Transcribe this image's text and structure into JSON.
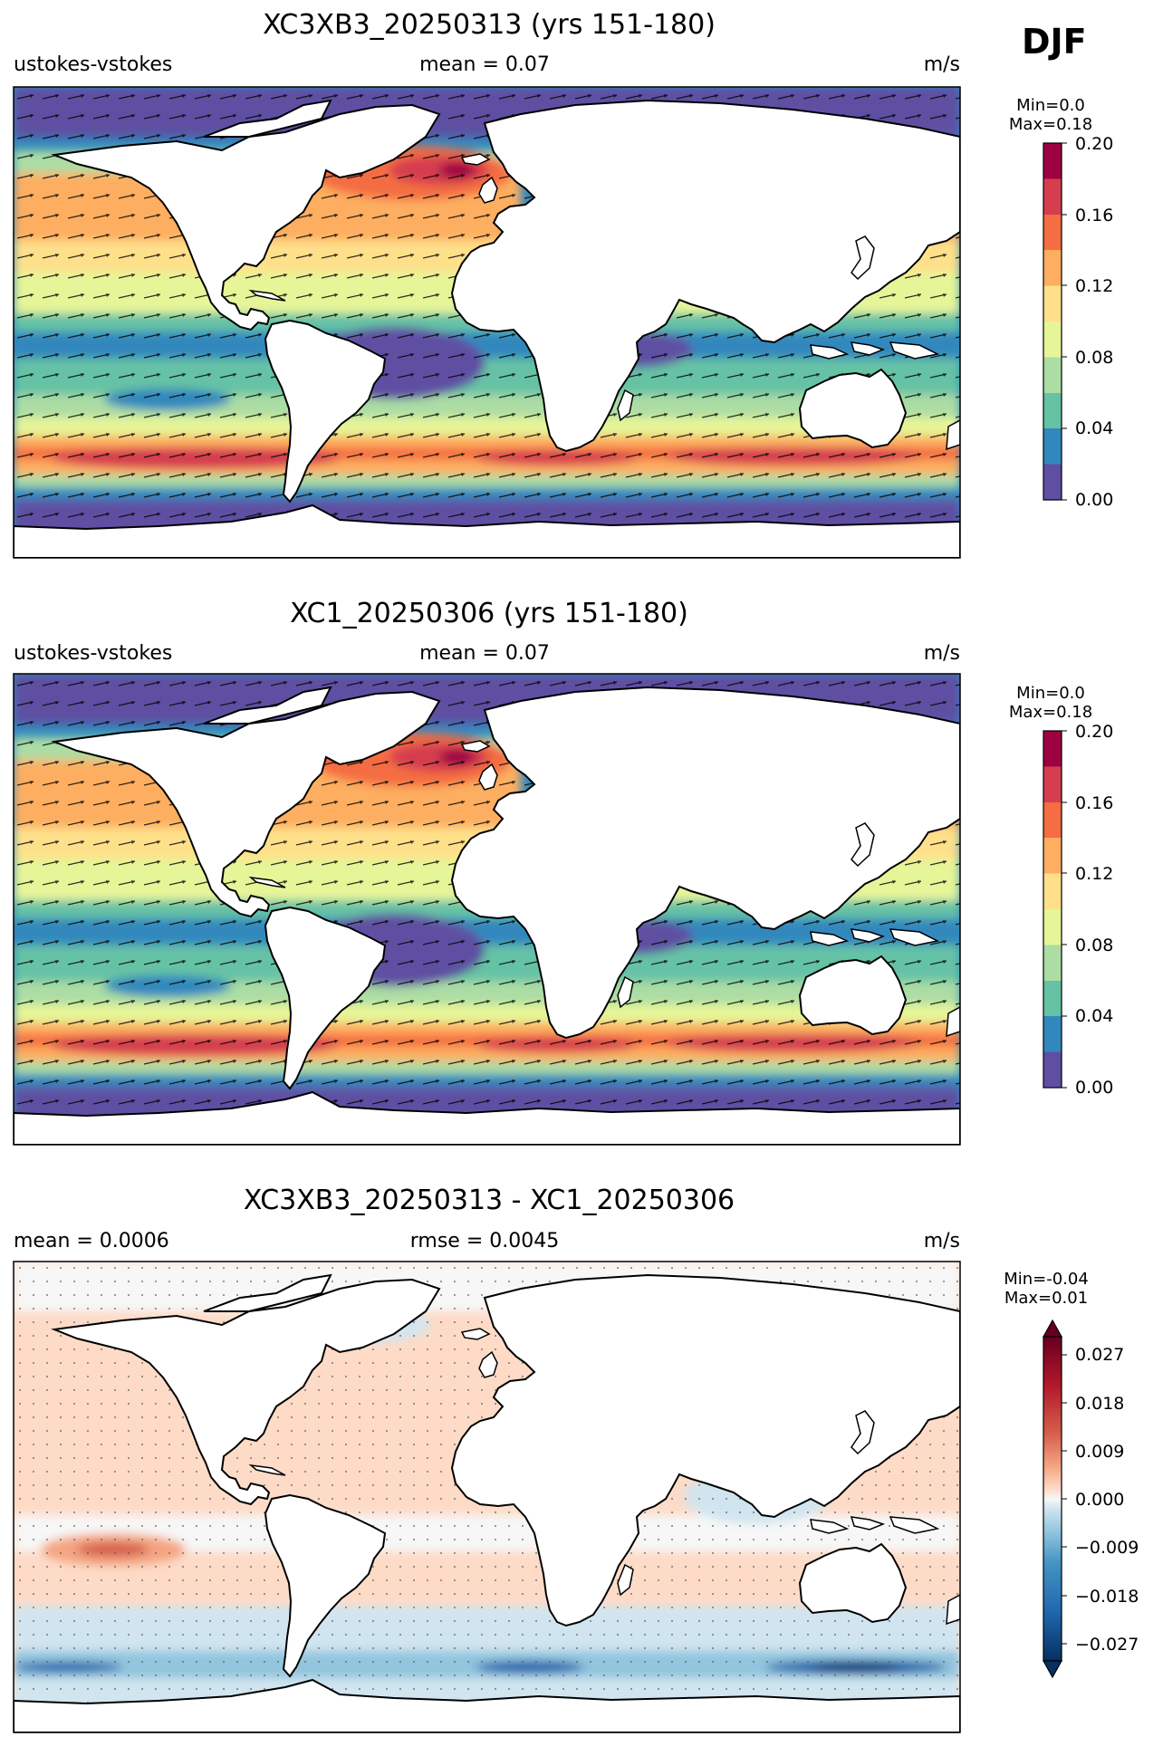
{
  "season": "DJF",
  "panels": [
    {
      "title": "XC3XB3_20250313 (yrs 151-180)",
      "left_label": "ustokes-vstokes",
      "center_label": "mean = 0.07",
      "right_label": "m/s",
      "min_label": "Min=0.0",
      "max_label": "Max=0.18",
      "colorbar_ticks": [
        "0.20",
        "0.16",
        "0.12",
        "0.08",
        "0.04",
        "0.00"
      ]
    },
    {
      "title": "XC1_20250306 (yrs 151-180)",
      "left_label": "ustokes-vstokes",
      "center_label": "mean = 0.07",
      "right_label": "m/s",
      "min_label": "Min=0.0",
      "max_label": "Max=0.18",
      "colorbar_ticks": [
        "0.20",
        "0.16",
        "0.12",
        "0.08",
        "0.04",
        "0.00"
      ]
    },
    {
      "title": "XC3XB3_20250313 - XC1_20250306",
      "left_label": "mean = 0.0006",
      "center_label": "rmse = 0.0045",
      "right_label": "m/s",
      "min_label": "Min=-0.04",
      "max_label": "Max=0.01",
      "colorbar_ticks": [
        "0.027",
        "0.018",
        "0.009",
        "0.000",
        "−0.009",
        "−0.018",
        "−0.027"
      ]
    }
  ],
  "colors": {
    "spectral": [
      "#5e4fa2",
      "#3288bd",
      "#66c2a5",
      "#abdda4",
      "#e6f598",
      "#fee08b",
      "#fdae61",
      "#f46d43",
      "#d53e4f",
      "#9e0142"
    ],
    "diverging": [
      "#053061",
      "#2166ac",
      "#4393c3",
      "#92c5de",
      "#d1e5f0",
      "#f7f7f7",
      "#fddbc7",
      "#f4a582",
      "#d6604d",
      "#b2182b",
      "#67001f"
    ]
  }
}
